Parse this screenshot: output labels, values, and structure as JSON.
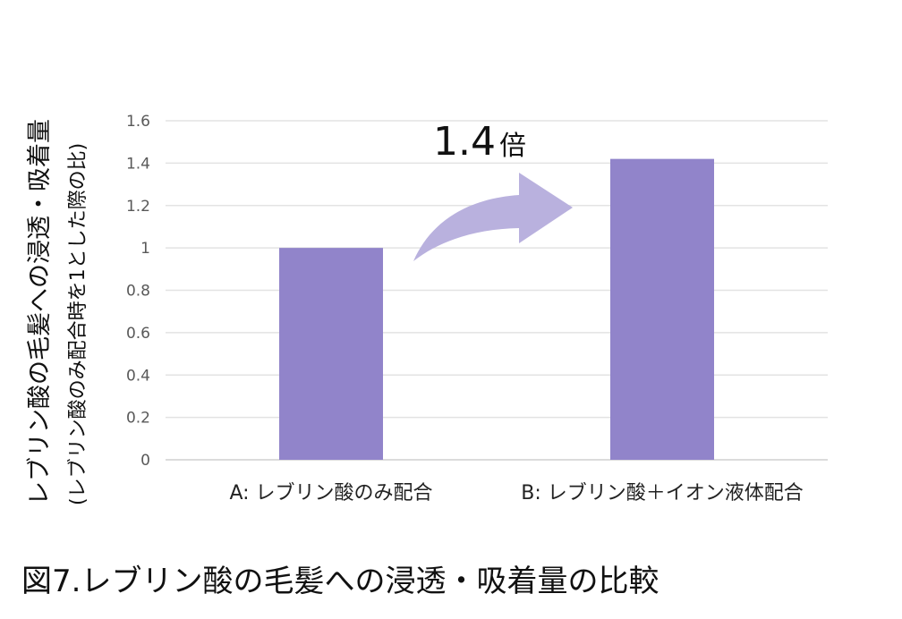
{
  "chart_data": {
    "type": "bar",
    "categories": [
      "A: レブリン酸のみ配合",
      "B: レブリン酸＋イオン液体配合"
    ],
    "values": [
      1.0,
      1.42
    ],
    "ylabel": "レブリン酸の毛髪への浸透・吸着量",
    "ylabel_sub": "(レブリン酸のみ配合時を1とした際の比)",
    "ylim": [
      0,
      1.6
    ],
    "yticks": [
      "0",
      "0.2",
      "0.4",
      "0.6",
      "0.8",
      "1",
      "1.2",
      "1.4",
      "1.6"
    ],
    "grid": true,
    "bar_color": "#9184ca",
    "annotation": {
      "value": "1.4",
      "unit": "倍",
      "arrow_color": "#b9b1de"
    }
  },
  "caption": "図7.レブリン酸の毛髪への浸透・吸着量の比較"
}
